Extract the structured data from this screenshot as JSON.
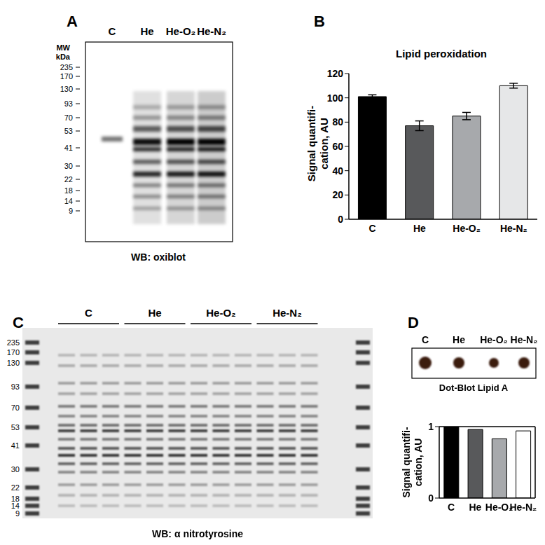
{
  "panel_labels": [
    "A",
    "B",
    "C",
    "D"
  ],
  "blots": [
    {
      "lanes": [
        "C",
        "He",
        "He-O₂",
        "He-N₂"
      ],
      "mw_label": [
        "MW",
        "kDa"
      ],
      "mw_markers": [
        235,
        170,
        130,
        93,
        70,
        53,
        41,
        30,
        22,
        18,
        14,
        9
      ],
      "caption": "WB: oxiblot"
    },
    {
      "groups": [
        "C",
        "He",
        "He-O₂",
        "He-N₂"
      ],
      "mw_markers": [
        235,
        170,
        130,
        93,
        70,
        53,
        41,
        30,
        22,
        18,
        14,
        9
      ],
      "caption": "WB: α nitrotyrosine"
    },
    {
      "lanes": [
        "C",
        "He",
        "He-O₂",
        "He-N₂"
      ],
      "caption": "Dot-Blot Lipid A"
    }
  ],
  "chart_data": [
    {
      "type": "bar",
      "title": "Lipid peroxidation",
      "ylabel": "Signal quantifi-cation, AU",
      "categories": [
        "C",
        "He",
        "He-O₂",
        "He-N₂"
      ],
      "values": [
        101,
        77,
        85,
        110
      ],
      "errors": [
        1.5,
        4,
        3,
        2
      ],
      "colors": [
        "#000000",
        "#58595b",
        "#a7a9ac",
        "#e6e7e8"
      ],
      "ylim": [
        0,
        120
      ],
      "yticks": [
        0,
        20,
        40,
        60,
        80,
        100,
        120
      ],
      "grid": false
    },
    {
      "type": "bar",
      "ylabel": "Signal quantifi-cation, AU",
      "categories": [
        "C",
        "He",
        "He-O₂",
        "He-N₂"
      ],
      "values": [
        1,
        0.96,
        0.83,
        0.94
      ],
      "colors": [
        "#000000",
        "#58595b",
        "#a7a9ac",
        "#ffffff"
      ],
      "ylim": [
        0,
        1
      ],
      "yticks": [
        0,
        1
      ],
      "grid": false
    }
  ]
}
